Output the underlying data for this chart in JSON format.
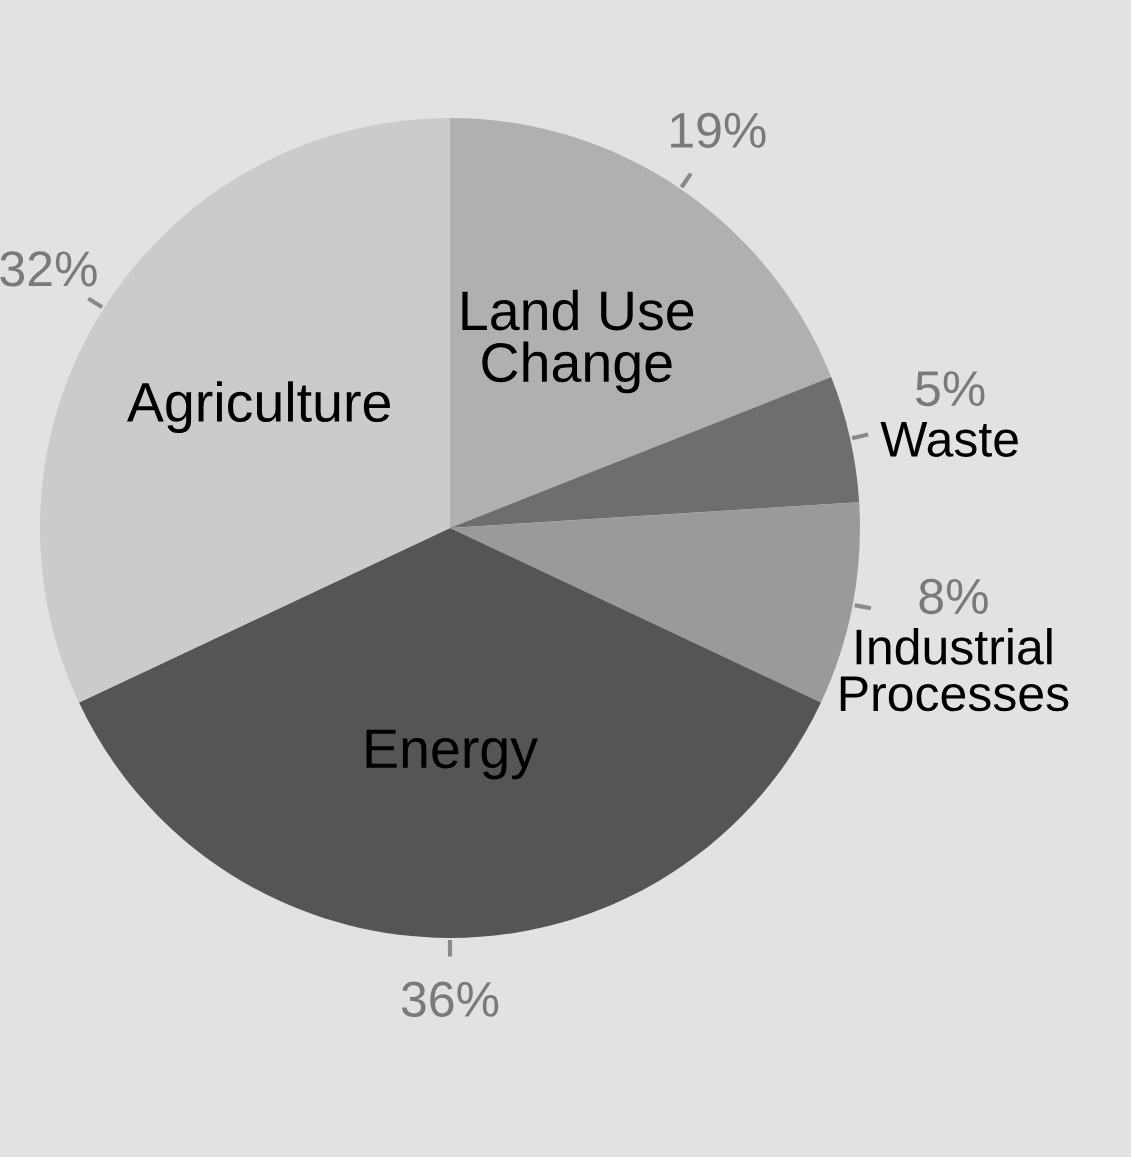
{
  "chart_data": {
    "type": "pie",
    "categories": [
      "Land Use Change",
      "Waste",
      "Industrial Processes",
      "Energy",
      "Agriculture"
    ],
    "values": [
      19,
      5,
      8,
      36,
      32
    ],
    "colors": [
      "#b0b0b0",
      "#6e6e6e",
      "#9a9a9a",
      "#555555",
      "#cbcbcb"
    ],
    "value_labels": [
      "19%",
      "5%",
      "8%",
      "36%",
      "32%"
    ],
    "legend": false
  }
}
